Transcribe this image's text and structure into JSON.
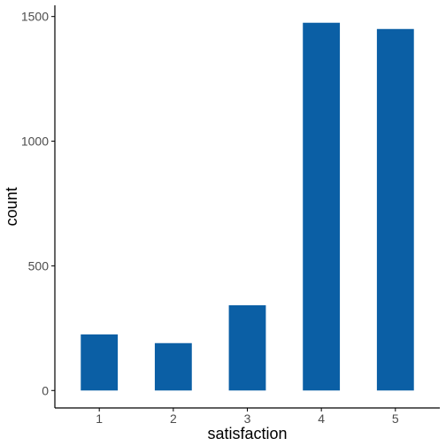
{
  "chart_data": {
    "type": "bar",
    "categories": [
      "1",
      "2",
      "3",
      "4",
      "5"
    ],
    "values": [
      225,
      190,
      342,
      1475,
      1450
    ],
    "xlabel": "satisfaction",
    "ylabel": "count",
    "ylim": [
      -70,
      1545
    ],
    "yticks": [
      0,
      500,
      1000,
      1500
    ],
    "ytick_labels": [
      "0",
      "500",
      "1000",
      "1500"
    ],
    "bar_color": "#0b5fa5",
    "axis_color": "#000000",
    "tick_label_color": "#4d4d4d",
    "grid": false,
    "legend": "none"
  }
}
